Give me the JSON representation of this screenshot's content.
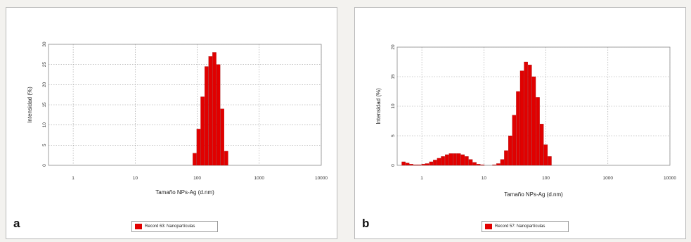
{
  "chart_data": [
    {
      "panel_label": "a",
      "type": "bar",
      "xlabel": "Tamaño NPs-Ag (d.nm)",
      "ylabel": "Intensidad (%)",
      "x_scale": "log",
      "xlim": [
        0.4,
        10000
      ],
      "ylim": [
        0,
        30
      ],
      "x_ticks": [
        1,
        10,
        100,
        1000,
        10000
      ],
      "x_tick_labels": [
        "1",
        "10",
        "100",
        "1000",
        "10000"
      ],
      "y_ticks": [
        0,
        5,
        10,
        15,
        20,
        25,
        30
      ],
      "y_tick_labels": [
        "0",
        "5",
        "10",
        "15",
        "20",
        "25",
        "30"
      ],
      "grid": true,
      "color": "#e10000",
      "legend": [
        "Record 63: Nanopartículas"
      ],
      "legend_position": "bottom",
      "series": [
        {
          "name": "Record 63: Nanopartículas",
          "x": [
            91.3,
            105.7,
            122.4,
            141.8,
            164.2,
            190.1,
            220.2,
            255.0,
            295.3
          ],
          "y": [
            3.0,
            9.0,
            17.0,
            24.5,
            27.0,
            28.0,
            25.0,
            14.0,
            3.5
          ]
        }
      ]
    },
    {
      "panel_label": "b",
      "type": "bar",
      "xlabel": "Tamaño NPs-Ag (d.nm)",
      "ylabel": "Intensidad (%)",
      "x_scale": "log",
      "xlim": [
        0.4,
        10000
      ],
      "ylim": [
        0,
        20
      ],
      "x_ticks": [
        1,
        10,
        100,
        1000,
        10000
      ],
      "x_tick_labels": [
        "1",
        "10",
        "100",
        "1000",
        "10000"
      ],
      "y_ticks": [
        0,
        5,
        10,
        15,
        20
      ],
      "y_tick_labels": [
        "0",
        "5",
        "10",
        "15",
        "20"
      ],
      "grid": true,
      "color": "#e10000",
      "legend": [
        "Record 57: Nanopartículas"
      ],
      "legend_position": "bottom",
      "series": [
        {
          "name": "Record 57: Nanopartículas",
          "x": [
            0.51,
            0.59,
            0.68,
            0.79,
            0.91,
            1.06,
            1.22,
            1.42,
            1.64,
            1.9,
            2.2,
            2.55,
            2.95,
            3.42,
            3.96,
            4.59,
            5.31,
            6.15,
            7.12,
            8.25,
            9.55,
            11.1,
            12.8,
            14.8,
            17.2,
            19.9,
            23.0,
            26.7,
            30.9,
            35.8,
            41.4,
            47.9,
            55.5,
            64.3,
            74.4,
            86.1,
            99.8,
            115.6
          ],
          "y": [
            0.6,
            0.4,
            0.2,
            0.1,
            0.1,
            0.2,
            0.3,
            0.6,
            0.9,
            1.2,
            1.5,
            1.8,
            2.0,
            2.0,
            2.0,
            1.8,
            1.5,
            1.0,
            0.5,
            0.2,
            0.1,
            0.0,
            0.0,
            0.1,
            0.3,
            1.0,
            2.5,
            5.0,
            8.5,
            12.5,
            16.0,
            17.5,
            17.0,
            15.0,
            11.5,
            7.0,
            3.5,
            1.5
          ]
        }
      ]
    }
  ]
}
